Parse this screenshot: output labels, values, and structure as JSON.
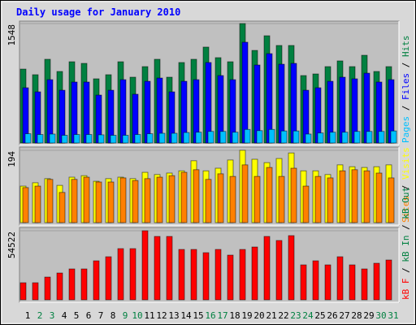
{
  "chart_data": [
    {
      "type": "bar",
      "title": "Daily usage for January 2010",
      "ylim": [
        0,
        1548
      ],
      "yticks": [
        1548
      ],
      "legend_separator": " / ",
      "series": [
        {
          "name": "Hits",
          "color": "#008040",
          "values": [
            958,
            885,
            1085,
            927,
            1053,
            1032,
            832,
            885,
            1053,
            853,
            990,
            1085,
            853,
            1043,
            1085,
            1243,
            1106,
            1053,
            1548,
            1200,
            1390,
            1264,
            1264,
            874,
            895,
            990,
            1064,
            990,
            1137,
            927,
            990
          ]
        },
        {
          "name": "Files",
          "color": "#0000ff",
          "values": [
            716,
            663,
            821,
            684,
            790,
            790,
            621,
            684,
            821,
            632,
            800,
            842,
            663,
            800,
            821,
            1043,
            874,
            821,
            1306,
            1011,
            1158,
            1021,
            1032,
            684,
            716,
            800,
            853,
            832,
            905,
            790,
            821
          ]
        },
        {
          "name": "Pages",
          "color": "#00c0ff",
          "values": [
            120,
            110,
            116,
            100,
            110,
            110,
            106,
            100,
            100,
            110,
            120,
            126,
            126,
            136,
            140,
            150,
            150,
            140,
            176,
            160,
            176,
            156,
            156,
            116,
            130,
            140,
            140,
            150,
            150,
            150,
            156
          ]
        }
      ]
    },
    {
      "type": "bar",
      "ylim": [
        0,
        194
      ],
      "yticks": [
        194
      ],
      "legend_separator": " / ",
      "series": [
        {
          "name": "Visits",
          "color": "#ffff00",
          "values": [
            98,
            107,
            118,
            100,
            122,
            126,
            111,
            118,
            122,
            118,
            135,
            129,
            133,
            139,
            166,
            139,
            146,
            168,
            194,
            170,
            161,
            172,
            187,
            139,
            139,
            129,
            155,
            150,
            148,
            150,
            155
          ]
        },
        {
          "name": "Sites",
          "color": "#ff8000",
          "values": [
            94,
            98,
            116,
            81,
            116,
            122,
            109,
            109,
            120,
            113,
            118,
            122,
            126,
            135,
            142,
            116,
            131,
            124,
            155,
            124,
            148,
            124,
            146,
            98,
            124,
            120,
            139,
            142,
            139,
            133,
            120
          ]
        }
      ]
    },
    {
      "type": "bar",
      "ylim": [
        0,
        54522
      ],
      "yticks": [
        54522
      ],
      "legend_separator": " / ",
      "series": [
        {
          "name": "kB F",
          "color": "#ff0000",
          "values": [
            13470,
            13470,
            17960,
            21167,
            24374,
            24374,
            30789,
            33996,
            40410,
            40410,
            54522,
            50032,
            50032,
            39769,
            39769,
            37203,
            39769,
            35279,
            39769,
            41694,
            50032,
            46825,
            50673,
            27582,
            30789,
            27582,
            33996,
            27582,
            24374,
            28865,
            31430
          ]
        }
      ],
      "extra_legend": [
        {
          "name": "kB In",
          "color": "#008040"
        },
        {
          "name": "kB Out",
          "color": "#008040"
        }
      ],
      "categories": [
        "1",
        "2",
        "3",
        "4",
        "5",
        "6",
        "7",
        "8",
        "9",
        "10",
        "11",
        "12",
        "13",
        "14",
        "15",
        "16",
        "17",
        "18",
        "19",
        "20",
        "21",
        "22",
        "23",
        "24",
        "25",
        "26",
        "27",
        "28",
        "29",
        "30",
        "31"
      ],
      "category_colors": [
        "#000000",
        "#008040",
        "#008040",
        "#000000",
        "#000000",
        "#000000",
        "#000000",
        "#000000",
        "#008040",
        "#008040",
        "#000000",
        "#000000",
        "#000000",
        "#000000",
        "#000000",
        "#008040",
        "#008040",
        "#000000",
        "#000000",
        "#000000",
        "#000000",
        "#000000",
        "#008040",
        "#008040",
        "#000000",
        "#000000",
        "#000000",
        "#000000",
        "#000000",
        "#008040",
        "#008040"
      ]
    }
  ]
}
